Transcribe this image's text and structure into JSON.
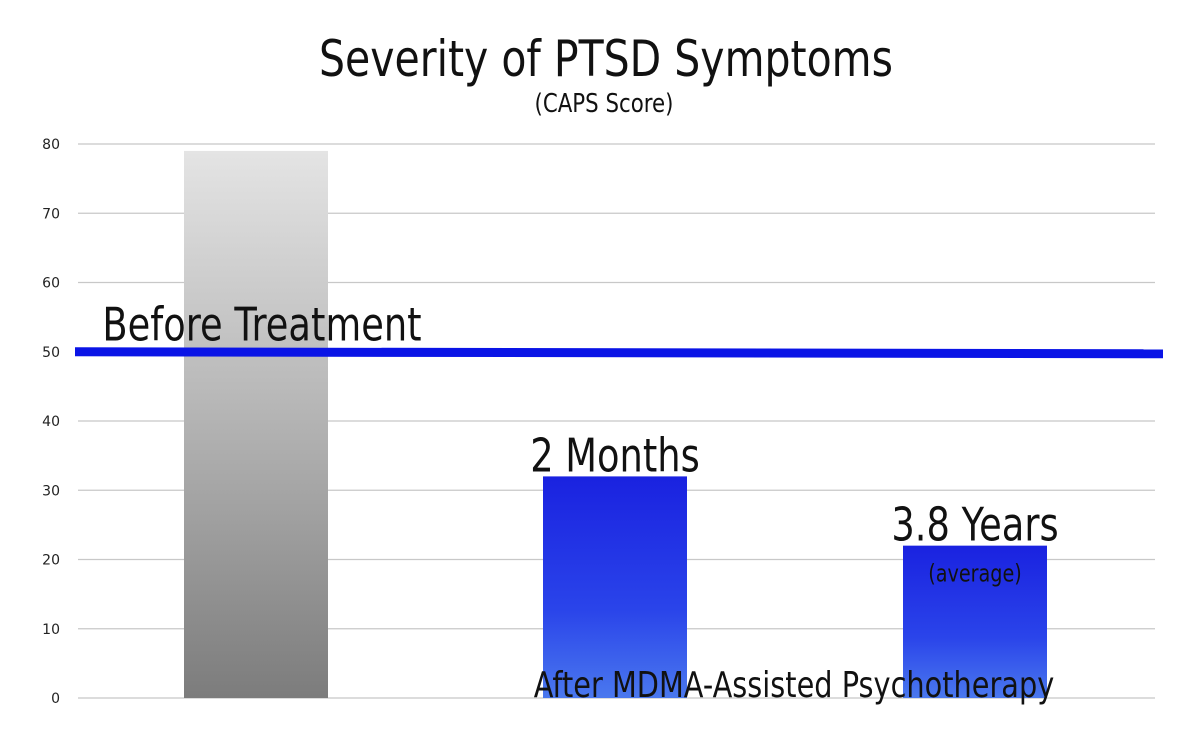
{
  "chart_data": {
    "type": "bar",
    "title": "Severity of PTSD Symptoms",
    "subtitle": "(CAPS Score)",
    "categories": [
      "",
      "",
      ""
    ],
    "values": [
      79,
      32,
      22
    ],
    "bar_labels": [
      "",
      "2 Months",
      "3.8 Years"
    ],
    "bar_sublabels": [
      "",
      "",
      "(average)"
    ],
    "ylim": [
      0,
      80
    ],
    "yticks": [
      0,
      10,
      20,
      30,
      40,
      50,
      60,
      70,
      80
    ],
    "grid": true,
    "reference_line": {
      "value": 50,
      "label": "Before Treatment",
      "color": "#0a14e6"
    },
    "annotation": "After MDMA-Assisted Psychotherapy",
    "colors": {
      "before_bar": "#9a9a9a",
      "after_bar": "#2030e8",
      "grid": "#c8c8c8"
    }
  }
}
